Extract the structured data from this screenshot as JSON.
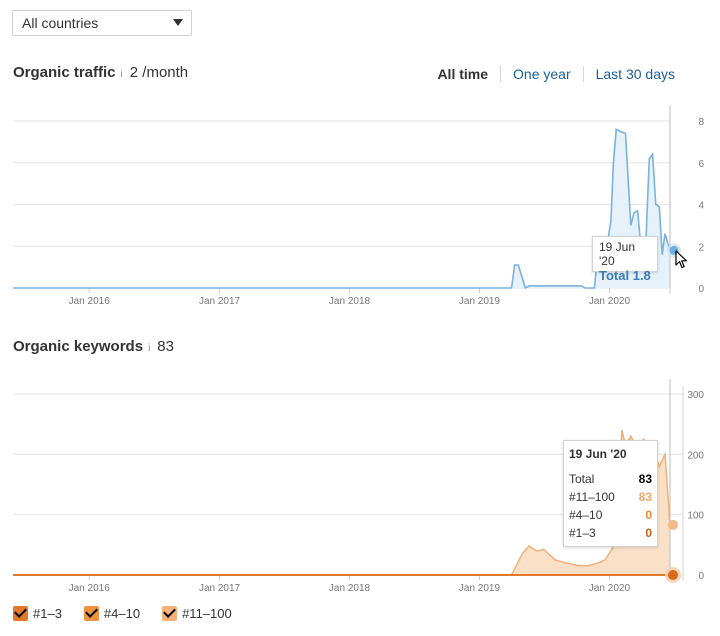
{
  "country_select": {
    "value": "All countries"
  },
  "traffic": {
    "title": "Organic traffic",
    "info_icon": "i",
    "value": "2 /month",
    "range_tabs": [
      {
        "label": "All time",
        "active": true
      },
      {
        "label": "One year",
        "active": false
      },
      {
        "label": "Last 30 days",
        "active": false
      }
    ],
    "tooltip": {
      "date": "19 Jun '20",
      "total_label": "Total",
      "total_value": "1.8"
    }
  },
  "keywords": {
    "title": "Organic keywords",
    "info_icon": "i",
    "value": "83",
    "tooltip": {
      "date": "19 Jun '20",
      "rows": [
        {
          "label": "Total",
          "value": "83",
          "color": "#000000"
        },
        {
          "label": "#11–100",
          "value": "83",
          "color": "#f0a868"
        },
        {
          "label": "#4–10",
          "value": "0",
          "color": "#e88a2f"
        },
        {
          "label": "#1–3",
          "value": "0",
          "color": "#c9620f"
        }
      ]
    }
  },
  "legend": [
    {
      "label": "#1–3",
      "color": "#e07a2a"
    },
    {
      "label": "#4–10",
      "color": "#f0923f"
    },
    {
      "label": "#11–100",
      "color": "#f6b276"
    }
  ],
  "colors": {
    "traffic_line": "#7ab2dc",
    "traffic_fill": "#e6f1fa",
    "keywords_line": "#f3b27a",
    "keywords_fill": "#fbe0c8",
    "keywords_base": "#e07a2a"
  },
  "chart_data": [
    {
      "type": "area",
      "title": "Organic traffic",
      "x_ticks": [
        "Jan 2016",
        "Jan 2017",
        "Jan 2018",
        "Jan 2019",
        "Jan 2020"
      ],
      "y_ticks": [
        "8",
        "6",
        "4",
        "2",
        "0"
      ],
      "ylim": [
        0,
        8
      ],
      "series": [
        {
          "x": [
            "2015-06-01",
            "2019-04-01",
            "2019-04-10",
            "2019-04-20",
            "2019-05-10",
            "2019-05-20",
            "2019-06-15",
            "2019-09-15",
            "2019-10-15",
            "2019-10-25",
            "2019-11-20",
            "2019-11-28",
            "2019-12-10",
            "2019-12-20",
            "2020-01-05",
            "2020-01-12",
            "2020-01-20",
            "2020-02-01",
            "2020-02-15",
            "2020-03-01",
            "2020-03-10",
            "2020-03-20",
            "2020-04-01",
            "2020-04-10",
            "2020-04-22",
            "2020-05-01",
            "2020-05-10",
            "2020-05-20",
            "2020-05-28",
            "2020-06-05",
            "2020-06-19"
          ],
          "values": [
            0,
            0,
            1.1,
            1.1,
            0,
            0.1,
            0.1,
            0.1,
            0.1,
            0,
            0,
            1.5,
            1.6,
            1.5,
            3.2,
            6,
            7.6,
            7.5,
            7.4,
            3,
            3.6,
            3.7,
            1.5,
            1.3,
            6.2,
            6.4,
            4,
            3.9,
            1.6,
            2.6,
            1.8
          ]
        }
      ]
    },
    {
      "type": "area",
      "title": "Organic keywords",
      "x_ticks": [
        "Jan 2016",
        "Jan 2017",
        "Jan 2018",
        "Jan 2019",
        "Jan 2020"
      ],
      "y_ticks": [
        "300",
        "200",
        "100",
        "0"
      ],
      "ylim": [
        0,
        300
      ],
      "series": [
        {
          "name": "#11–100",
          "x": [
            "2015-06-01",
            "2019-04-01",
            "2019-05-01",
            "2019-05-20",
            "2019-06-10",
            "2019-07-01",
            "2019-08-01",
            "2019-09-01",
            "2019-10-01",
            "2019-11-01",
            "2019-12-01",
            "2019-12-20",
            "2020-01-10",
            "2020-01-25",
            "2020-02-05",
            "2020-02-15",
            "2020-03-01",
            "2020-03-20",
            "2020-04-05",
            "2020-04-20",
            "2020-05-05",
            "2020-05-20",
            "2020-06-05",
            "2020-06-19"
          ],
          "values": [
            0,
            0,
            35,
            48,
            40,
            42,
            25,
            20,
            16,
            15,
            20,
            25,
            45,
            110,
            240,
            215,
            230,
            210,
            225,
            220,
            205,
            180,
            200,
            83
          ]
        },
        {
          "name": "#4–10",
          "x": [
            "2015-06-01",
            "2020-06-19"
          ],
          "values": [
            0,
            0
          ]
        },
        {
          "name": "#1–3",
          "x": [
            "2015-06-01",
            "2020-06-19"
          ],
          "values": [
            0,
            0
          ]
        }
      ]
    }
  ]
}
